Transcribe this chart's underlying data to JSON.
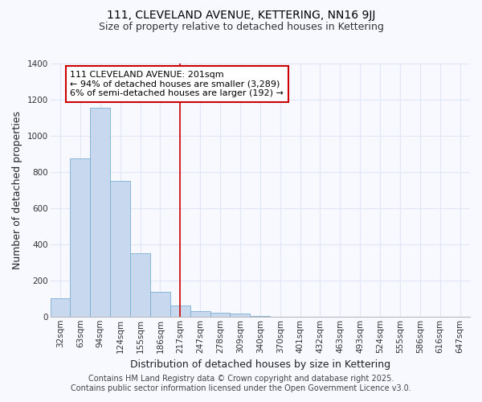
{
  "title": "111, CLEVELAND AVENUE, KETTERING, NN16 9JJ",
  "subtitle": "Size of property relative to detached houses in Kettering",
  "xlabel": "Distribution of detached houses by size in Kettering",
  "ylabel": "Number of detached properties",
  "bar_color": "#c8d8ee",
  "bar_edge_color": "#7aaed0",
  "background_color": "#f8f8ff",
  "plot_bg_color": "#f8f8ff",
  "grid_color": "#e0e8f8",
  "categories": [
    "32sqm",
    "63sqm",
    "94sqm",
    "124sqm",
    "155sqm",
    "186sqm",
    "217sqm",
    "247sqm",
    "278sqm",
    "309sqm",
    "340sqm",
    "370sqm",
    "401sqm",
    "432sqm",
    "463sqm",
    "493sqm",
    "524sqm",
    "555sqm",
    "586sqm",
    "616sqm",
    "647sqm"
  ],
  "values": [
    100,
    875,
    1155,
    750,
    350,
    135,
    60,
    30,
    20,
    15,
    5,
    0,
    0,
    0,
    0,
    0,
    0,
    0,
    0,
    0,
    0
  ],
  "ylim": [
    0,
    1400
  ],
  "yticks": [
    0,
    200,
    400,
    600,
    800,
    1000,
    1200,
    1400
  ],
  "red_line_x": 6.0,
  "annotation_line1": "111 CLEVELAND AVENUE: 201sqm",
  "annotation_line2": "← 94% of detached houses are smaller (3,289)",
  "annotation_line3": "6% of semi-detached houses are larger (192) →",
  "footer_line1": "Contains HM Land Registry data © Crown copyright and database right 2025.",
  "footer_line2": "Contains public sector information licensed under the Open Government Licence v3.0.",
  "title_fontsize": 10,
  "subtitle_fontsize": 9,
  "axis_label_fontsize": 9,
  "tick_fontsize": 7.5,
  "annotation_fontsize": 8,
  "footer_fontsize": 7
}
